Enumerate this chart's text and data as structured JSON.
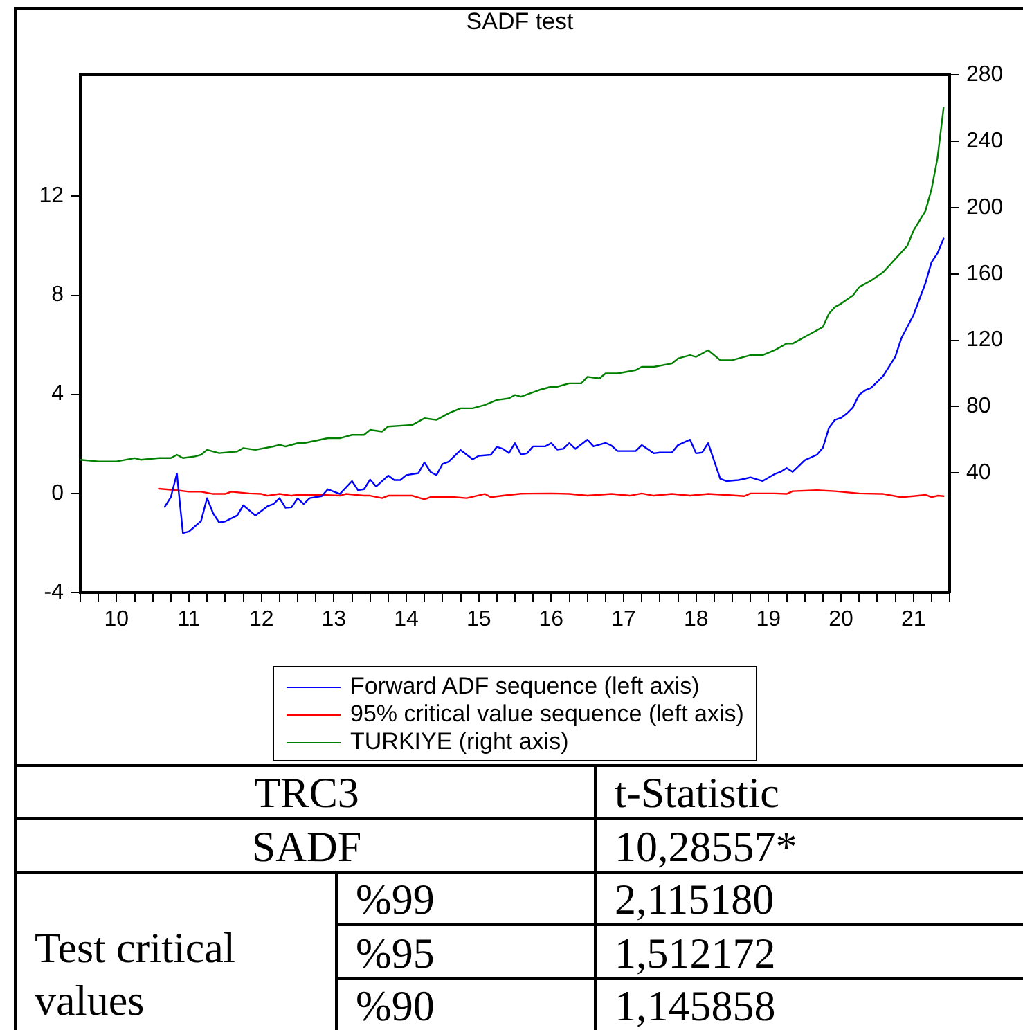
{
  "chart_data": [
    {
      "type": "line",
      "title": "SADF test",
      "legend": "bottom",
      "xlim": [
        "2010-01",
        "2022-01"
      ],
      "xticks": [
        {
          "value": "2010-01",
          "label": null
        },
        {
          "value": "2010-04",
          "label": null
        },
        {
          "value": "2010-07",
          "label": "10"
        },
        {
          "value": "2010-10",
          "label": null
        },
        {
          "value": "2011-01",
          "label": null
        },
        {
          "value": "2011-04",
          "label": null
        },
        {
          "value": "2011-07",
          "label": "11"
        },
        {
          "value": "2011-10",
          "label": null
        },
        {
          "value": "2012-01",
          "label": null
        },
        {
          "value": "2012-04",
          "label": null
        },
        {
          "value": "2012-07",
          "label": "12"
        },
        {
          "value": "2012-10",
          "label": null
        },
        {
          "value": "2013-01",
          "label": null
        },
        {
          "value": "2013-04",
          "label": null
        },
        {
          "value": "2013-07",
          "label": "13"
        },
        {
          "value": "2013-10",
          "label": null
        },
        {
          "value": "2014-01",
          "label": null
        },
        {
          "value": "2014-04",
          "label": null
        },
        {
          "value": "2014-07",
          "label": "14"
        },
        {
          "value": "2014-10",
          "label": null
        },
        {
          "value": "2015-01",
          "label": null
        },
        {
          "value": "2015-04",
          "label": null
        },
        {
          "value": "2015-07",
          "label": "15"
        },
        {
          "value": "2015-10",
          "label": null
        },
        {
          "value": "2016-01",
          "label": null
        },
        {
          "value": "2016-04",
          "label": null
        },
        {
          "value": "2016-07",
          "label": "16"
        },
        {
          "value": "2016-10",
          "label": null
        },
        {
          "value": "2017-01",
          "label": null
        },
        {
          "value": "2017-04",
          "label": null
        },
        {
          "value": "2017-07",
          "label": "17"
        },
        {
          "value": "2017-10",
          "label": null
        },
        {
          "value": "2018-01",
          "label": null
        },
        {
          "value": "2018-04",
          "label": null
        },
        {
          "value": "2018-07",
          "label": "18"
        },
        {
          "value": "2018-10",
          "label": null
        },
        {
          "value": "2019-01",
          "label": null
        },
        {
          "value": "2019-04",
          "label": null
        },
        {
          "value": "2019-07",
          "label": "19"
        },
        {
          "value": "2019-10",
          "label": null
        },
        {
          "value": "2020-01",
          "label": null
        },
        {
          "value": "2020-04",
          "label": null
        },
        {
          "value": "2020-07",
          "label": "20"
        },
        {
          "value": "2020-10",
          "label": null
        },
        {
          "value": "2021-01",
          "label": null
        },
        {
          "value": "2021-04",
          "label": null
        },
        {
          "value": "2021-07",
          "label": "21"
        },
        {
          "value": "2021-10",
          "label": null
        },
        {
          "value": "2022-01",
          "label": null
        }
      ],
      "ylim": [
        -4,
        16.9
      ],
      "yticks": [
        -4,
        0,
        4,
        8,
        12
      ],
      "y2lim": [
        -32,
        280
      ],
      "y2ticks": [
        40,
        80,
        120,
        160,
        200,
        240,
        280
      ],
      "series": [
        {
          "name": "Forward ADF sequence (left axis)",
          "color": "#0000ff",
          "x": [
            "2011-03",
            "2011-04",
            "2011-05",
            "2011-06",
            "2011-07",
            "2011-09",
            "2011-10",
            "2011-11",
            "2011-12",
            "2012-01",
            "2012-03",
            "2012-04",
            "2012-06",
            "2012-08",
            "2012-09",
            "2012-10",
            "2012-11",
            "2012-12",
            "2013-01",
            "2013-02",
            "2013-03",
            "2013-05",
            "2013-06",
            "2013-08",
            "2013-10",
            "2013-11",
            "2013-12",
            "2014-01",
            "2014-02",
            "2014-04",
            "2014-05",
            "2014-06",
            "2014-07",
            "2014-09",
            "2014-10",
            "2014-11",
            "2014-12",
            "2015-01",
            "2015-02",
            "2015-04",
            "2015-06",
            "2015-07",
            "2015-09",
            "2015-10",
            "2015-11",
            "2015-12",
            "2016-01",
            "2016-02",
            "2016-03",
            "2016-04",
            "2016-06",
            "2016-07",
            "2016-08",
            "2016-09",
            "2016-10",
            "2016-11",
            "2017-01",
            "2017-02",
            "2017-04",
            "2017-05",
            "2017-06",
            "2017-09",
            "2017-10",
            "2017-12",
            "2018-01",
            "2018-03",
            "2018-04",
            "2018-06",
            "2018-07",
            "2018-08",
            "2018-09",
            "2018-11",
            "2018-12",
            "2019-02",
            "2019-03",
            "2019-04",
            "2019-06",
            "2019-08",
            "2019-09",
            "2019-10",
            "2019-11",
            "2019-12",
            "2020-01",
            "2020-03",
            "2020-04",
            "2020-05",
            "2020-06",
            "2020-07",
            "2020-08",
            "2020-09",
            "2020-10",
            "2020-11",
            "2020-12",
            "2021-02",
            "2021-04",
            "2021-05",
            "2021-07",
            "2021-09",
            "2021-10",
            "2021-11",
            "2021-12"
          ],
          "values": [
            -0.54,
            -0.15,
            0.8,
            -1.6,
            -1.54,
            -1.12,
            -0.19,
            -0.8,
            -1.17,
            -1.13,
            -0.89,
            -0.48,
            -0.89,
            -0.52,
            -0.43,
            -0.19,
            -0.58,
            -0.56,
            -0.2,
            -0.43,
            -0.19,
            -0.11,
            0.17,
            -0.02,
            0.5,
            0.13,
            0.17,
            0.56,
            0.28,
            0.72,
            0.54,
            0.54,
            0.74,
            0.82,
            1.25,
            0.87,
            0.74,
            1.19,
            1.28,
            1.75,
            1.38,
            1.52,
            1.56,
            1.88,
            1.8,
            1.63,
            2.03,
            1.57,
            1.62,
            1.9,
            1.9,
            2.03,
            1.77,
            1.8,
            2.03,
            1.8,
            2.17,
            1.9,
            2.04,
            1.93,
            1.71,
            1.71,
            1.95,
            1.62,
            1.65,
            1.65,
            1.95,
            2.17,
            1.62,
            1.65,
            2.03,
            0.59,
            0.5,
            0.54,
            0.59,
            0.65,
            0.5,
            0.78,
            0.87,
            1.02,
            0.87,
            1.1,
            1.34,
            1.56,
            1.84,
            2.64,
            2.97,
            3.05,
            3.23,
            3.48,
            3.98,
            4.16,
            4.26,
            4.74,
            5.52,
            6.26,
            7.19,
            8.49,
            9.33,
            9.7,
            10.29
          ]
        },
        {
          "name": "95% critical value sequence (left axis)",
          "color": "#ff0000",
          "x": [
            "2011-02",
            "2011-05",
            "2011-07",
            "2011-09",
            "2011-11",
            "2012-01",
            "2012-02",
            "2012-05",
            "2012-07",
            "2012-08",
            "2012-10",
            "2012-12",
            "2013-01",
            "2013-05",
            "2013-08",
            "2013-09",
            "2013-12",
            "2014-01",
            "2014-03",
            "2014-04",
            "2014-08",
            "2014-10",
            "2014-11",
            "2015-03",
            "2015-05",
            "2015-08",
            "2015-09",
            "2015-11",
            "2016-02",
            "2016-07",
            "2016-10",
            "2017-01",
            "2017-05",
            "2017-08",
            "2017-10",
            "2017-12",
            "2018-03",
            "2018-06",
            "2018-09",
            "2018-12",
            "2019-03",
            "2019-04",
            "2019-08",
            "2019-10",
            "2019-11",
            "2020-03",
            "2020-06",
            "2020-10",
            "2021-02",
            "2021-05",
            "2021-07",
            "2021-09",
            "2021-10",
            "2021-11",
            "2021-12"
          ],
          "values": [
            0.19,
            0.13,
            0.07,
            0.07,
            -0.02,
            -0.02,
            0.07,
            0.0,
            -0.02,
            -0.09,
            -0.02,
            -0.09,
            -0.06,
            -0.06,
            -0.09,
            -0.02,
            -0.09,
            -0.09,
            -0.19,
            -0.09,
            -0.09,
            -0.24,
            -0.15,
            -0.15,
            -0.19,
            -0.02,
            -0.15,
            -0.09,
            -0.01,
            0.0,
            -0.02,
            -0.09,
            -0.02,
            -0.09,
            0.0,
            -0.09,
            -0.02,
            -0.09,
            -0.02,
            -0.06,
            -0.11,
            0.0,
            0.0,
            -0.02,
            0.09,
            0.13,
            0.09,
            0.0,
            -0.02,
            -0.15,
            -0.11,
            -0.06,
            -0.15,
            -0.09,
            -0.11
          ]
        },
        {
          "name": "TURKIYE (right axis)",
          "color": "#008000",
          "axis": "y2",
          "x": [
            "2010-01",
            "2010-04",
            "2010-07",
            "2010-10",
            "2010-11",
            "2011-02",
            "2011-04",
            "2011-05",
            "2011-06",
            "2011-08",
            "2011-09",
            "2011-10",
            "2011-12",
            "2012-03",
            "2012-04",
            "2012-06",
            "2012-09",
            "2012-10",
            "2012-11",
            "2013-01",
            "2013-02",
            "2013-06",
            "2013-08",
            "2013-10",
            "2013-12",
            "2014-01",
            "2014-03",
            "2014-04",
            "2014-08",
            "2014-10",
            "2014-12",
            "2015-02",
            "2015-04",
            "2015-06",
            "2015-08",
            "2015-10",
            "2015-12",
            "2016-01",
            "2016-02",
            "2016-05",
            "2016-07",
            "2016-08",
            "2016-10",
            "2016-12",
            "2017-01",
            "2017-03",
            "2017-04",
            "2017-06",
            "2017-09",
            "2017-10",
            "2017-12",
            "2018-03",
            "2018-04",
            "2018-06",
            "2018-07",
            "2018-09",
            "2018-11",
            "2019-01",
            "2019-02",
            "2019-04",
            "2019-06",
            "2019-08",
            "2019-10",
            "2019-11",
            "2020-01",
            "2020-03",
            "2020-04",
            "2020-05",
            "2020-06",
            "2020-07",
            "2020-09",
            "2020-10",
            "2020-12",
            "2021-02",
            "2021-04",
            "2021-06",
            "2021-07",
            "2021-09",
            "2021-10",
            "2021-11",
            "2021-12"
          ],
          "values": [
            48,
            47,
            47,
            49,
            48,
            49,
            49,
            51,
            49,
            50,
            51,
            54,
            52,
            53,
            55,
            54,
            56,
            57,
            56,
            58,
            58,
            61,
            61,
            63,
            63,
            66,
            65,
            68,
            69,
            73,
            72,
            76,
            79,
            79,
            81,
            84,
            85,
            87,
            86,
            90,
            92,
            92,
            94,
            94,
            98,
            97,
            100,
            100,
            102,
            104,
            104,
            106,
            109,
            111,
            110,
            114,
            108,
            108,
            109,
            111,
            111,
            114,
            118,
            118,
            122,
            126,
            128,
            136,
            140,
            142,
            147,
            152,
            156,
            161,
            169,
            177,
            186,
            198,
            211,
            230,
            260
          ]
        }
      ]
    },
    {
      "type": "other",
      "annotations": [
        "TRC3",
        "t-Statistic",
        "SADF",
        "10,28557*",
        "Test critical values",
        "%99",
        "2,115180",
        "%95",
        "1,512172",
        "%90",
        "1,145858"
      ]
    }
  ]
}
